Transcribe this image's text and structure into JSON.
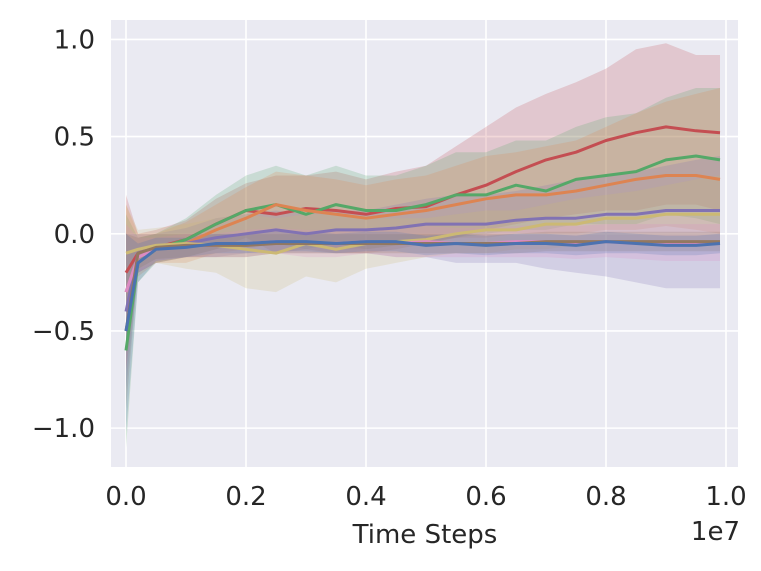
{
  "chart_data": {
    "type": "line",
    "title": "",
    "xlabel": "Time Steps",
    "ylabel": "",
    "x_offset_label": "1e7",
    "xlim": [
      -0.025,
      1.02
    ],
    "ylim": [
      -1.2,
      1.1
    ],
    "xticks": [
      0.0,
      0.2,
      0.4,
      0.6,
      0.8,
      1.0
    ],
    "xtick_labels": [
      "0.0",
      "0.2",
      "0.4",
      "0.6",
      "0.8",
      "1.0"
    ],
    "yticks": [
      -1.0,
      -0.5,
      0.0,
      0.5,
      1.0
    ],
    "ytick_labels": [
      "−1.0",
      "−0.5",
      "0.0",
      "0.5",
      "1.0"
    ],
    "grid": true,
    "background": "#eaeaf2",
    "x": [
      0.0,
      0.02,
      0.05,
      0.1,
      0.15,
      0.2,
      0.25,
      0.3,
      0.35,
      0.4,
      0.45,
      0.5,
      0.55,
      0.6,
      0.65,
      0.7,
      0.75,
      0.8,
      0.85,
      0.9,
      0.95,
      0.99
    ],
    "series": [
      {
        "color": "#c44e52",
        "values": [
          -0.2,
          -0.1,
          -0.07,
          -0.03,
          0.05,
          0.12,
          0.1,
          0.13,
          0.12,
          0.1,
          0.13,
          0.14,
          0.2,
          0.25,
          0.32,
          0.38,
          0.42,
          0.48,
          0.52,
          0.55,
          0.53,
          0.52
        ],
        "lower": [
          -0.35,
          -0.2,
          -0.15,
          -0.12,
          -0.08,
          -0.02,
          -0.1,
          -0.08,
          -0.1,
          -0.1,
          -0.08,
          -0.05,
          -0.02,
          0.02,
          0.05,
          0.08,
          0.1,
          0.12,
          0.12,
          0.15,
          0.15,
          0.12
        ],
        "upper": [
          0.2,
          0.0,
          0.02,
          0.07,
          0.18,
          0.26,
          0.3,
          0.3,
          0.32,
          0.28,
          0.32,
          0.35,
          0.45,
          0.55,
          0.65,
          0.72,
          0.78,
          0.85,
          0.95,
          0.98,
          0.92,
          0.92
        ]
      },
      {
        "color": "#55a868",
        "values": [
          -0.6,
          -0.15,
          -0.08,
          -0.03,
          0.05,
          0.12,
          0.15,
          0.1,
          0.15,
          0.12,
          0.12,
          0.15,
          0.2,
          0.2,
          0.25,
          0.22,
          0.28,
          0.3,
          0.32,
          0.38,
          0.4,
          0.38
        ],
        "lower": [
          -1.1,
          -0.25,
          -0.15,
          -0.12,
          -0.08,
          -0.05,
          -0.05,
          -0.08,
          -0.05,
          -0.08,
          -0.06,
          -0.04,
          -0.02,
          0.0,
          0.02,
          0.02,
          0.05,
          0.05,
          0.05,
          0.1,
          0.08,
          0.05
        ],
        "upper": [
          0.1,
          -0.02,
          0.0,
          0.08,
          0.2,
          0.3,
          0.35,
          0.3,
          0.35,
          0.3,
          0.3,
          0.35,
          0.42,
          0.42,
          0.48,
          0.48,
          0.55,
          0.6,
          0.62,
          0.7,
          0.75,
          0.75
        ]
      },
      {
        "color": "#dd8452",
        "values": [
          -0.3,
          -0.12,
          -0.08,
          -0.05,
          0.02,
          0.08,
          0.15,
          0.12,
          0.1,
          0.08,
          0.1,
          0.12,
          0.15,
          0.18,
          0.2,
          0.2,
          0.22,
          0.25,
          0.28,
          0.3,
          0.3,
          0.28
        ],
        "lower": [
          -0.7,
          -0.22,
          -0.15,
          -0.15,
          -0.1,
          -0.08,
          -0.05,
          -0.06,
          -0.08,
          -0.08,
          -0.06,
          -0.05,
          -0.02,
          -0.02,
          0.0,
          0.0,
          0.0,
          0.02,
          0.02,
          0.04,
          0.02,
          0.0
        ],
        "upper": [
          0.15,
          0.0,
          0.0,
          0.06,
          0.15,
          0.24,
          0.32,
          0.3,
          0.28,
          0.25,
          0.28,
          0.3,
          0.35,
          0.4,
          0.42,
          0.45,
          0.48,
          0.55,
          0.62,
          0.68,
          0.72,
          0.75
        ]
      },
      {
        "color": "#8172b3",
        "values": [
          -0.4,
          -0.1,
          -0.07,
          -0.05,
          -0.02,
          0.0,
          0.02,
          0.0,
          0.02,
          0.02,
          0.03,
          0.05,
          0.05,
          0.05,
          0.07,
          0.08,
          0.08,
          0.1,
          0.1,
          0.12,
          0.12,
          0.12
        ],
        "lower": [
          -0.8,
          -0.2,
          -0.15,
          -0.12,
          -0.12,
          -0.1,
          -0.1,
          -0.1,
          -0.1,
          -0.1,
          -0.12,
          -0.12,
          -0.15,
          -0.15,
          -0.15,
          -0.18,
          -0.2,
          -0.22,
          -0.25,
          -0.28,
          -0.28,
          -0.28
        ],
        "upper": [
          0.0,
          0.0,
          0.0,
          0.03,
          0.08,
          0.1,
          0.12,
          0.1,
          0.12,
          0.12,
          0.15,
          0.18,
          0.2,
          0.2,
          0.22,
          0.25,
          0.28,
          0.3,
          0.32,
          0.35,
          0.38,
          0.4
        ]
      },
      {
        "color": "#ccb974",
        "values": [
          -0.1,
          -0.08,
          -0.06,
          -0.05,
          -0.06,
          -0.08,
          -0.1,
          -0.05,
          -0.08,
          -0.05,
          -0.04,
          -0.03,
          0.0,
          0.02,
          0.02,
          0.05,
          0.05,
          0.08,
          0.08,
          0.1,
          0.1,
          0.1
        ],
        "lower": [
          -0.35,
          -0.18,
          -0.15,
          -0.18,
          -0.2,
          -0.28,
          -0.3,
          -0.22,
          -0.25,
          -0.18,
          -0.15,
          -0.12,
          -0.1,
          -0.1,
          -0.08,
          -0.08,
          -0.06,
          -0.05,
          -0.05,
          -0.05,
          -0.06,
          -0.06
        ],
        "upper": [
          0.15,
          0.02,
          0.03,
          0.05,
          0.08,
          0.1,
          0.08,
          0.1,
          0.1,
          0.08,
          0.08,
          0.08,
          0.1,
          0.12,
          0.12,
          0.15,
          0.18,
          0.2,
          0.22,
          0.25,
          0.28,
          0.3
        ]
      },
      {
        "color": "#da8bc3",
        "values": [
          -0.3,
          -0.12,
          -0.08,
          -0.06,
          -0.06,
          -0.05,
          -0.04,
          -0.05,
          -0.05,
          -0.04,
          -0.05,
          -0.04,
          -0.05,
          -0.05,
          -0.04,
          -0.04,
          -0.05,
          -0.04,
          -0.05,
          -0.05,
          -0.05,
          -0.05
        ],
        "lower": [
          -0.7,
          -0.2,
          -0.14,
          -0.12,
          -0.12,
          -0.12,
          -0.1,
          -0.12,
          -0.12,
          -0.1,
          -0.12,
          -0.12,
          -0.12,
          -0.12,
          -0.12,
          -0.12,
          -0.13,
          -0.12,
          -0.13,
          -0.14,
          -0.14,
          -0.14
        ],
        "upper": [
          0.05,
          -0.02,
          -0.02,
          0.0,
          0.0,
          0.02,
          0.03,
          0.02,
          0.02,
          0.03,
          0.02,
          0.04,
          0.03,
          0.03,
          0.04,
          0.05,
          0.04,
          0.05,
          0.05,
          0.05,
          0.05,
          0.05
        ]
      },
      {
        "color": "#937860",
        "values": [
          -0.5,
          -0.1,
          -0.07,
          -0.06,
          -0.06,
          -0.06,
          -0.05,
          -0.05,
          -0.05,
          -0.05,
          -0.05,
          -0.05,
          -0.05,
          -0.05,
          -0.05,
          -0.04,
          -0.04,
          -0.04,
          -0.04,
          -0.04,
          -0.04,
          -0.04
        ],
        "lower": [
          -0.9,
          -0.18,
          -0.13,
          -0.12,
          -0.12,
          -0.12,
          -0.1,
          -0.1,
          -0.1,
          -0.1,
          -0.1,
          -0.1,
          -0.1,
          -0.1,
          -0.1,
          -0.09,
          -0.09,
          -0.09,
          -0.09,
          -0.09,
          -0.09,
          -0.09
        ],
        "upper": [
          0.0,
          -0.02,
          0.0,
          0.0,
          0.0,
          0.0,
          0.0,
          0.0,
          0.0,
          0.0,
          0.0,
          0.0,
          0.0,
          0.0,
          0.0,
          0.01,
          0.01,
          0.01,
          0.01,
          0.01,
          0.01,
          0.01
        ]
      },
      {
        "color": "#4c72b0",
        "values": [
          -0.5,
          -0.15,
          -0.08,
          -0.07,
          -0.05,
          -0.05,
          -0.04,
          -0.04,
          -0.05,
          -0.04,
          -0.04,
          -0.06,
          -0.05,
          -0.06,
          -0.05,
          -0.05,
          -0.06,
          -0.04,
          -0.05,
          -0.06,
          -0.06,
          -0.05
        ],
        "lower": [
          -1.02,
          -0.25,
          -0.14,
          -0.12,
          -0.1,
          -0.1,
          -0.09,
          -0.09,
          -0.1,
          -0.09,
          -0.09,
          -0.11,
          -0.1,
          -0.11,
          -0.1,
          -0.1,
          -0.11,
          -0.1,
          -0.1,
          -0.11,
          -0.11,
          -0.1
        ],
        "upper": [
          0.0,
          -0.05,
          -0.02,
          -0.02,
          0.0,
          0.0,
          0.01,
          0.01,
          0.0,
          0.01,
          0.01,
          -0.01,
          0.0,
          -0.01,
          0.0,
          0.0,
          -0.01,
          0.01,
          0.0,
          -0.01,
          -0.01,
          0.0
        ]
      }
    ]
  }
}
